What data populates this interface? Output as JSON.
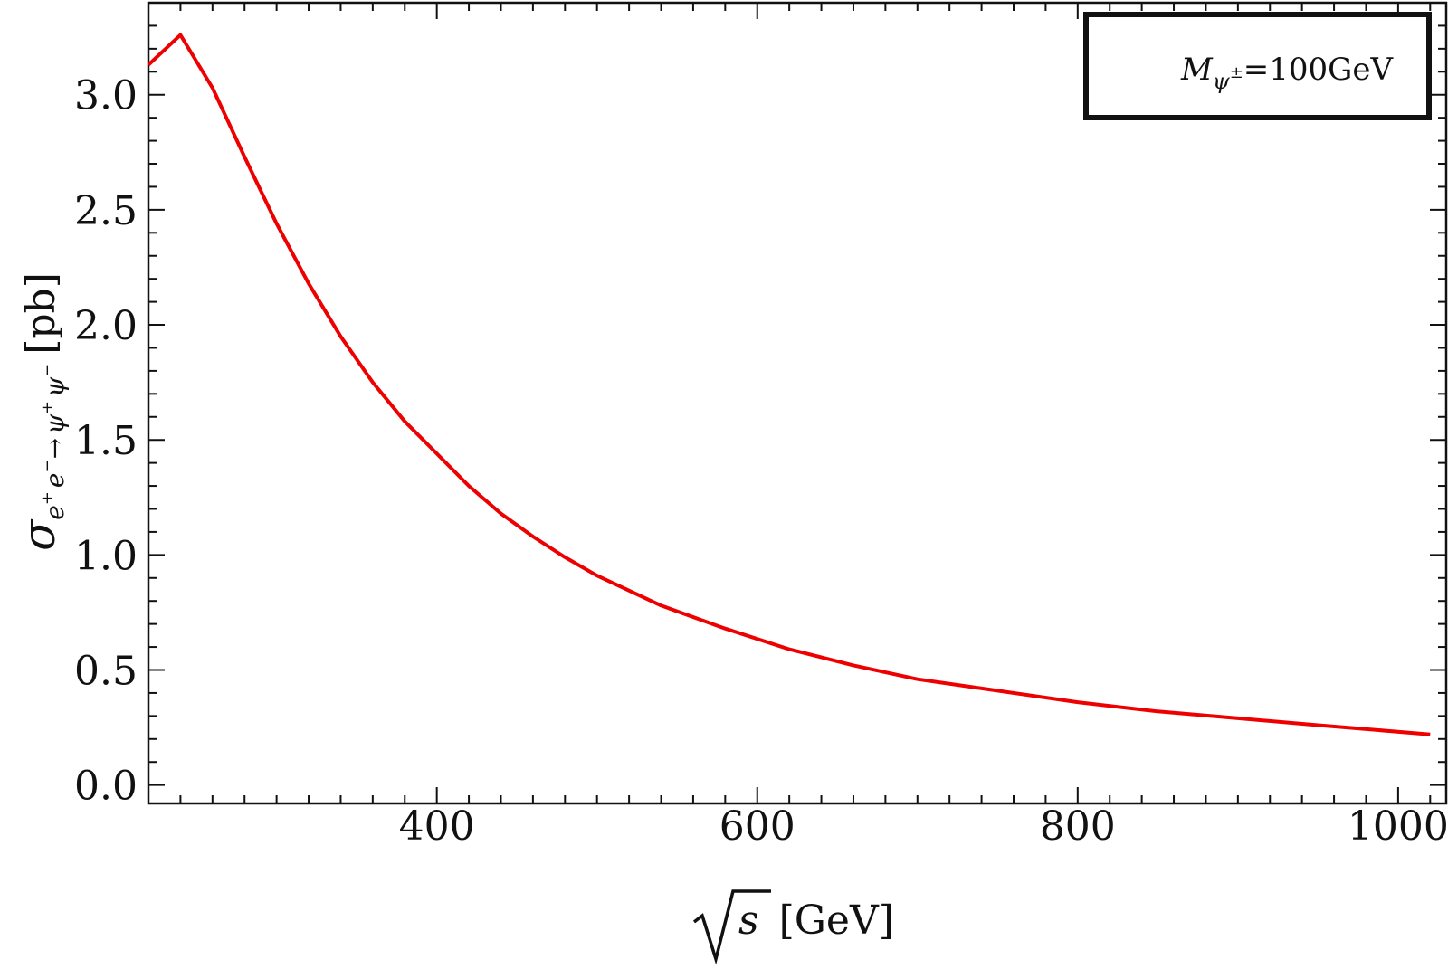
{
  "chart_data": {
    "type": "line",
    "xlabel_radical": "√",
    "xlabel_var": "s",
    "xlabel_unit": "[GeV]",
    "ylabel_sigma": "σ",
    "ylabel_sub_e1": "e",
    "ylabel_sub_plus": "+",
    "ylabel_sub_e2": "e",
    "ylabel_sub_minus": "−",
    "ylabel_sub_arrow": "→",
    "ylabel_sub_psi1": "ψ",
    "ylabel_sub_psi_plus": "+",
    "ylabel_sub_psi2": "ψ",
    "ylabel_sub_psi_minus": "−",
    "ylabel_unit": "[pb]",
    "xlim": [
      220,
      1030
    ],
    "ylim": [
      -0.08,
      3.4
    ],
    "x_ticks": [
      400,
      600,
      800,
      1000
    ],
    "y_ticks": [
      0.0,
      0.5,
      1.0,
      1.5,
      2.0,
      2.5,
      3.0
    ],
    "x_tick_labels": [
      "400",
      "600",
      "800",
      "1000"
    ],
    "y_tick_labels": [
      "0.0",
      "0.5",
      "1.0",
      "1.5",
      "2.0",
      "2.5",
      "3.0"
    ],
    "grid": false,
    "legend": {
      "placement": "top-right",
      "symbol": "M",
      "subscript": "ψ",
      "subscript_sup": "±",
      "value_text": "=100GeV"
    },
    "series": [
      {
        "color": "#ee0000",
        "x": [
          220,
          240,
          260,
          280,
          300,
          320,
          340,
          360,
          380,
          400,
          420,
          440,
          460,
          480,
          500,
          540,
          580,
          620,
          660,
          700,
          750,
          800,
          850,
          900,
          950,
          1020
        ],
        "y": [
          3.13,
          3.26,
          3.03,
          2.73,
          2.44,
          2.18,
          1.95,
          1.75,
          1.58,
          1.44,
          1.3,
          1.18,
          1.08,
          0.99,
          0.91,
          0.78,
          0.68,
          0.59,
          0.52,
          0.46,
          0.41,
          0.36,
          0.32,
          0.29,
          0.26,
          0.22
        ]
      }
    ]
  }
}
